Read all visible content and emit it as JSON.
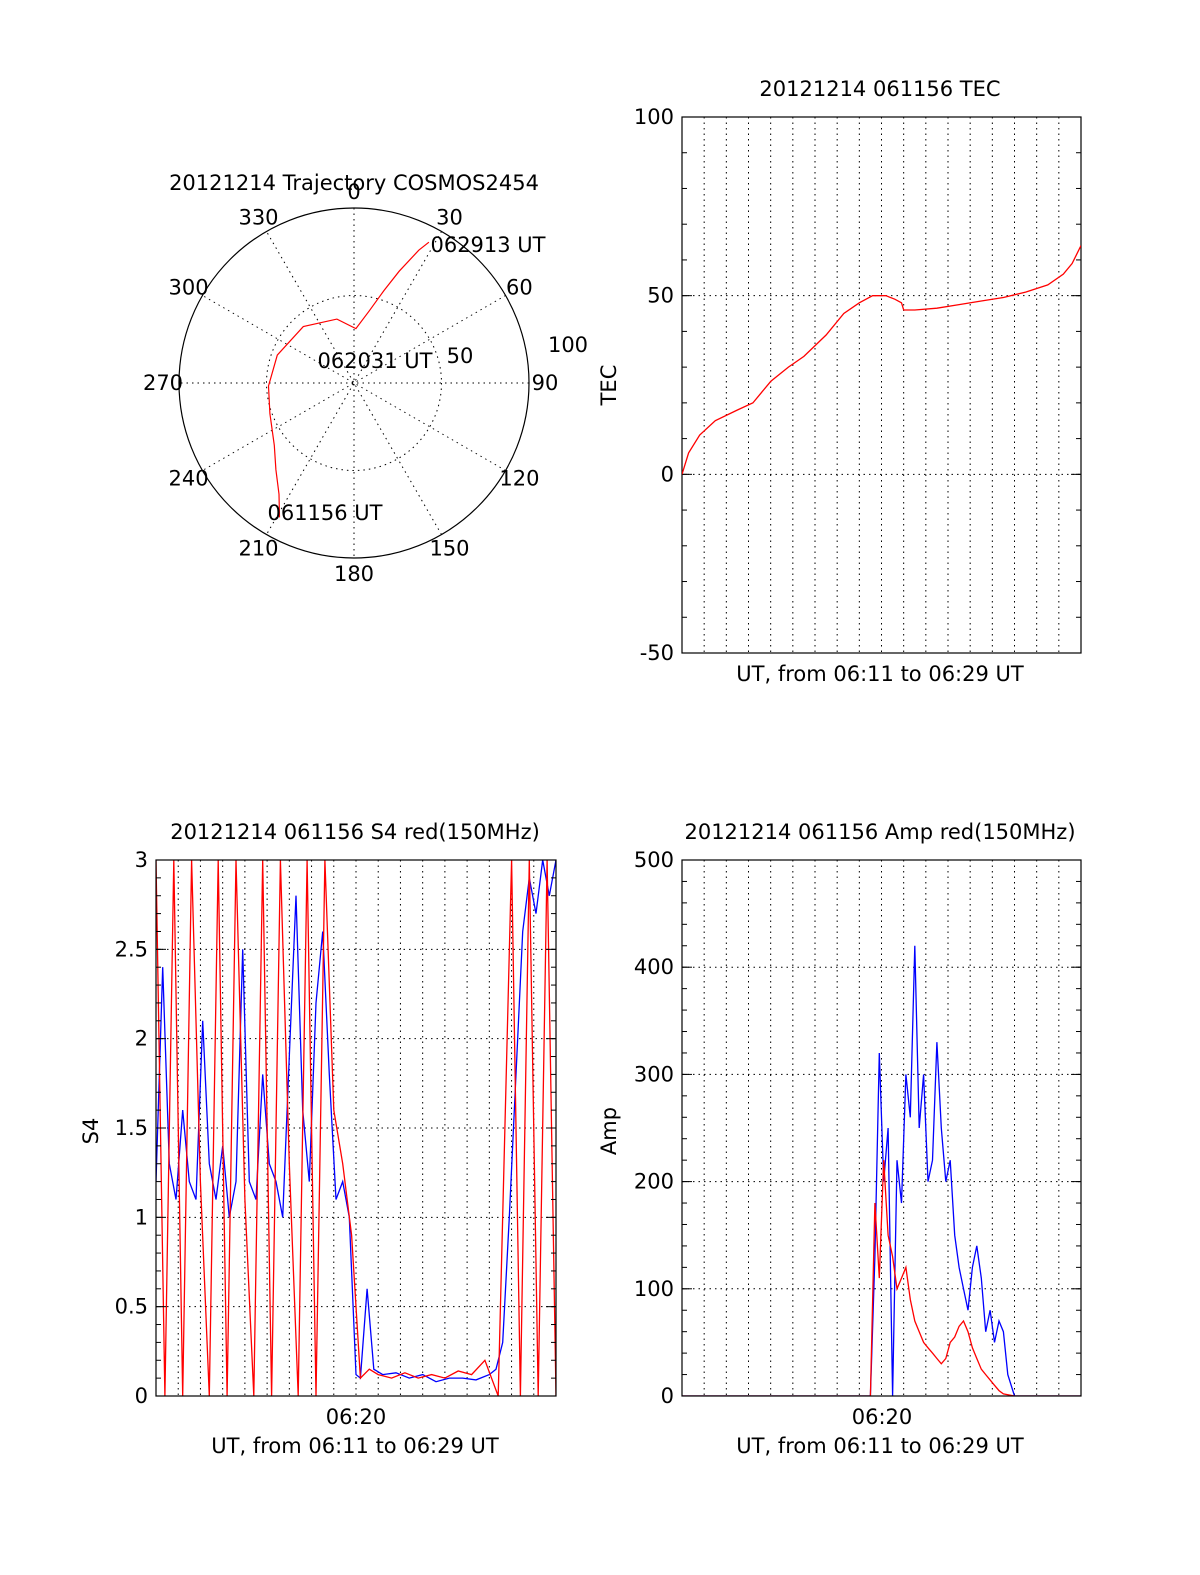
{
  "colors": {
    "red": "#ff0000",
    "blue": "#0000ff",
    "ink": "#000000"
  },
  "chart_data": [
    {
      "id": "trajectory",
      "type": "polar",
      "title": "20121214 Trajectory COSMOS2454",
      "angle_labels": [
        "0",
        "30",
        "60",
        "90",
        "120",
        "150",
        "180",
        "210",
        "240",
        "270",
        "300",
        "330"
      ],
      "radius_labels": [
        "50",
        "100"
      ],
      "trajectory": {
        "color": "red",
        "points_az_el": [
          [
            209,
            11
          ],
          [
            214,
            21
          ],
          [
            222,
            30
          ],
          [
            232,
            38
          ],
          [
            250,
            44
          ],
          [
            268,
            46
          ],
          [
            290,
            48
          ],
          [
            318,
            51
          ],
          [
            345,
            56
          ],
          [
            2,
            62
          ],
          [
            12,
            52
          ],
          [
            18,
            40
          ],
          [
            22,
            28
          ],
          [
            26,
            14
          ],
          [
            28,
            8
          ]
        ],
        "start_label": "061156 UT",
        "mid_label": "062031 UT",
        "end_label": "062913 UT"
      }
    },
    {
      "id": "tec",
      "type": "line",
      "title": "20121214 061156 TEC",
      "xlabel": "UT, from 06:11 to 06:29 UT",
      "ylabel": "TEC",
      "ylim": [
        -50,
        100
      ],
      "yticks": [
        "-50",
        "0",
        "50",
        "100"
      ],
      "xlim_minutes": [
        0,
        18
      ],
      "series": [
        {
          "color": "red",
          "x_min": [
            0,
            0.3,
            0.8,
            1.5,
            2.5,
            3.2,
            4.0,
            4.8,
            5.5,
            6.5,
            7.3,
            8.0,
            8.6,
            9.2,
            9.6,
            9.9,
            10.0,
            10.5,
            11.5,
            12.5,
            13.5,
            14.5,
            15.5,
            16.5,
            17.2,
            17.6,
            18.0
          ],
          "y": [
            0,
            6,
            11,
            15,
            18,
            20,
            26,
            30,
            33,
            39,
            45,
            48,
            50,
            50,
            49,
            48,
            46,
            46,
            46.5,
            47.5,
            48.5,
            49.5,
            51,
            53,
            56,
            59,
            64
          ]
        }
      ]
    },
    {
      "id": "s4",
      "type": "line",
      "title": "20121214 061156 S4 red(150MHz)",
      "xlabel": "UT, from 06:11 to 06:29 UT",
      "ylabel": "S4",
      "ylim": [
        0,
        3
      ],
      "yticks": [
        "0",
        "0.5",
        "1",
        "1.5",
        "2",
        "2.5",
        "3"
      ],
      "xticks": [
        "06:20"
      ],
      "series": [
        {
          "name": "",
          "color": "blue",
          "x_min": [
            0,
            0.3,
            0.6,
            0.9,
            1.2,
            1.5,
            1.8,
            2.1,
            2.4,
            2.7,
            3.0,
            3.3,
            3.6,
            3.9,
            4.2,
            4.5,
            4.8,
            5.1,
            5.4,
            5.7,
            6.0,
            6.3,
            6.6,
            6.9,
            7.2,
            7.5,
            7.8,
            8.1,
            8.4,
            8.7,
            9.0,
            9.2,
            9.5,
            9.8,
            10.2,
            10.8,
            11.4,
            12.0,
            12.6,
            13.2,
            13.8,
            14.4,
            15.0,
            15.3,
            15.6,
            15.9,
            16.2,
            16.5,
            16.8,
            17.1,
            17.4,
            17.7,
            18.0
          ],
          "y": [
            1.2,
            2.4,
            1.3,
            1.1,
            1.6,
            1.2,
            1.1,
            2.1,
            1.3,
            1.1,
            1.4,
            1.0,
            1.2,
            2.5,
            1.2,
            1.1,
            1.8,
            1.3,
            1.2,
            1.0,
            1.9,
            2.8,
            1.6,
            1.2,
            2.2,
            2.6,
            1.8,
            1.1,
            1.2,
            1.0,
            0.12,
            0.1,
            0.6,
            0.15,
            0.12,
            0.13,
            0.1,
            0.12,
            0.08,
            0.1,
            0.1,
            0.09,
            0.12,
            0.15,
            0.3,
            1.0,
            1.8,
            2.6,
            2.9,
            2.7,
            3.0,
            2.8,
            3.0
          ]
        },
        {
          "name": "",
          "color": "red",
          "x_min": [
            0,
            0.4,
            0.8,
            1.2,
            1.6,
            2.0,
            2.4,
            2.8,
            3.2,
            3.6,
            4.0,
            4.4,
            4.8,
            5.2,
            5.6,
            6.0,
            6.4,
            6.8,
            7.2,
            7.6,
            8.0,
            8.4,
            8.8,
            9.2,
            9.6,
            10.0,
            10.6,
            11.2,
            11.8,
            12.4,
            13.0,
            13.6,
            14.2,
            14.8,
            15.4,
            16.0,
            16.4,
            16.8,
            17.2,
            17.6,
            18.0
          ],
          "y": [
            3.0,
            0.0,
            3.0,
            0.0,
            3.0,
            1.2,
            0.0,
            3.0,
            0.0,
            3.0,
            1.1,
            0.0,
            3.0,
            0.0,
            3.0,
            1.3,
            0.0,
            3.0,
            0.0,
            3.0,
            1.6,
            1.3,
            0.9,
            0.1,
            0.15,
            0.12,
            0.1,
            0.13,
            0.1,
            0.12,
            0.1,
            0.14,
            0.12,
            0.2,
            0.0,
            3.0,
            0.0,
            3.0,
            0.0,
            3.0,
            0.0
          ]
        }
      ]
    },
    {
      "id": "amp",
      "type": "line",
      "title": "20121214 061156 Amp red(150MHz)",
      "xlabel": "UT, from 06:11 to 06:29 UT",
      "ylabel": "Amp",
      "ylim": [
        0,
        500
      ],
      "yticks": [
        "0",
        "100",
        "200",
        "300",
        "400",
        "500"
      ],
      "xticks": [
        "06:20"
      ],
      "series": [
        {
          "name": "",
          "color": "blue",
          "x_min": [
            0,
            8.5,
            8.7,
            8.9,
            9.1,
            9.3,
            9.5,
            9.7,
            9.9,
            10.1,
            10.3,
            10.5,
            10.7,
            10.9,
            11.1,
            11.3,
            11.5,
            11.7,
            11.9,
            12.1,
            12.3,
            12.5,
            12.7,
            12.9,
            13.1,
            13.3,
            13.5,
            13.7,
            13.9,
            14.1,
            14.3,
            14.5,
            14.7,
            15.0,
            15.5,
            16.0,
            18.0
          ],
          "y": [
            0,
            0,
            130,
            320,
            200,
            250,
            0,
            220,
            180,
            300,
            260,
            420,
            250,
            300,
            200,
            220,
            330,
            250,
            200,
            220,
            150,
            120,
            100,
            80,
            120,
            140,
            110,
            60,
            80,
            50,
            70,
            60,
            20,
            0,
            0,
            0,
            0
          ]
        },
        {
          "name": "",
          "color": "red",
          "x_min": [
            0,
            8.5,
            8.7,
            8.9,
            9.1,
            9.3,
            9.5,
            9.7,
            9.9,
            10.1,
            10.3,
            10.5,
            10.7,
            10.9,
            11.1,
            11.3,
            11.5,
            11.7,
            11.9,
            12.1,
            12.3,
            12.5,
            12.7,
            12.9,
            13.1,
            13.3,
            13.5,
            13.7,
            13.9,
            14.1,
            14.3,
            14.5,
            15.0,
            18.0
          ],
          "y": [
            0,
            0,
            180,
            110,
            220,
            150,
            130,
            100,
            110,
            120,
            90,
            70,
            60,
            50,
            45,
            40,
            35,
            30,
            35,
            50,
            55,
            65,
            70,
            60,
            45,
            35,
            25,
            20,
            15,
            10,
            5,
            2,
            0,
            0
          ]
        }
      ]
    }
  ]
}
